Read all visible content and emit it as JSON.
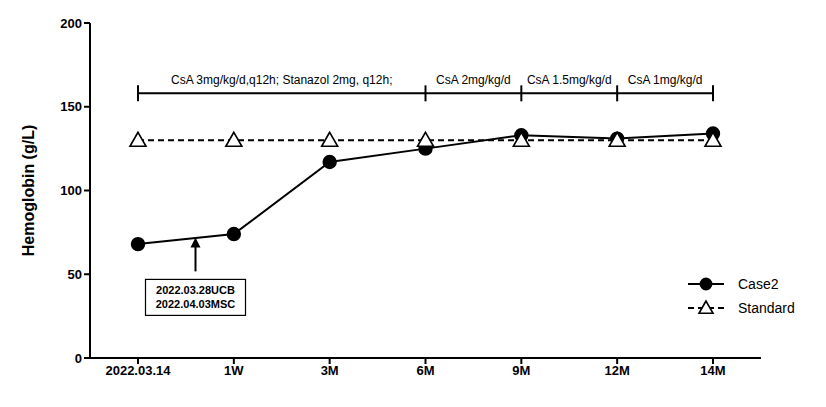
{
  "chart_data": {
    "type": "line",
    "categories": [
      "2022.03.14",
      "1W",
      "3M",
      "6M",
      "9M",
      "12M",
      "14M"
    ],
    "y_label": "Hemoglobin (g/L)",
    "ylim": [
      0,
      200
    ],
    "yticks": [
      0,
      50,
      100,
      150,
      200
    ],
    "grid": false,
    "legend": "lower right",
    "series": [
      {
        "name": "Case2",
        "color": "#000000",
        "marker": "circle",
        "line_style": "solid",
        "values": [
          68,
          74,
          117,
          125,
          133,
          131,
          134
        ]
      },
      {
        "name": "Standard",
        "color": "#000000",
        "marker": "triangle_open",
        "line_style": "dashed",
        "values": [
          130,
          130,
          130,
          130,
          130,
          130,
          130
        ]
      }
    ],
    "regimens": {
      "y": 158,
      "items": [
        {
          "text": "CsA 3mg/kg/d,q12h; Stanazol 2mg, q12h;",
          "from": "2022.03.14",
          "to": "6M"
        },
        {
          "text": "CsA 2mg/kg/d",
          "from": "6M",
          "to": "9M"
        },
        {
          "text": "CsA 1.5mg/kg/d",
          "from": "9M",
          "to": "12M"
        },
        {
          "text": "CsA 1mg/kg/d",
          "from": "12M",
          "to": "14M"
        }
      ]
    },
    "arrow": {
      "text": [
        "2022.03.28UCB",
        "2022.04.03MSC"
      ],
      "x_position": 0.6,
      "y": 72
    }
  }
}
